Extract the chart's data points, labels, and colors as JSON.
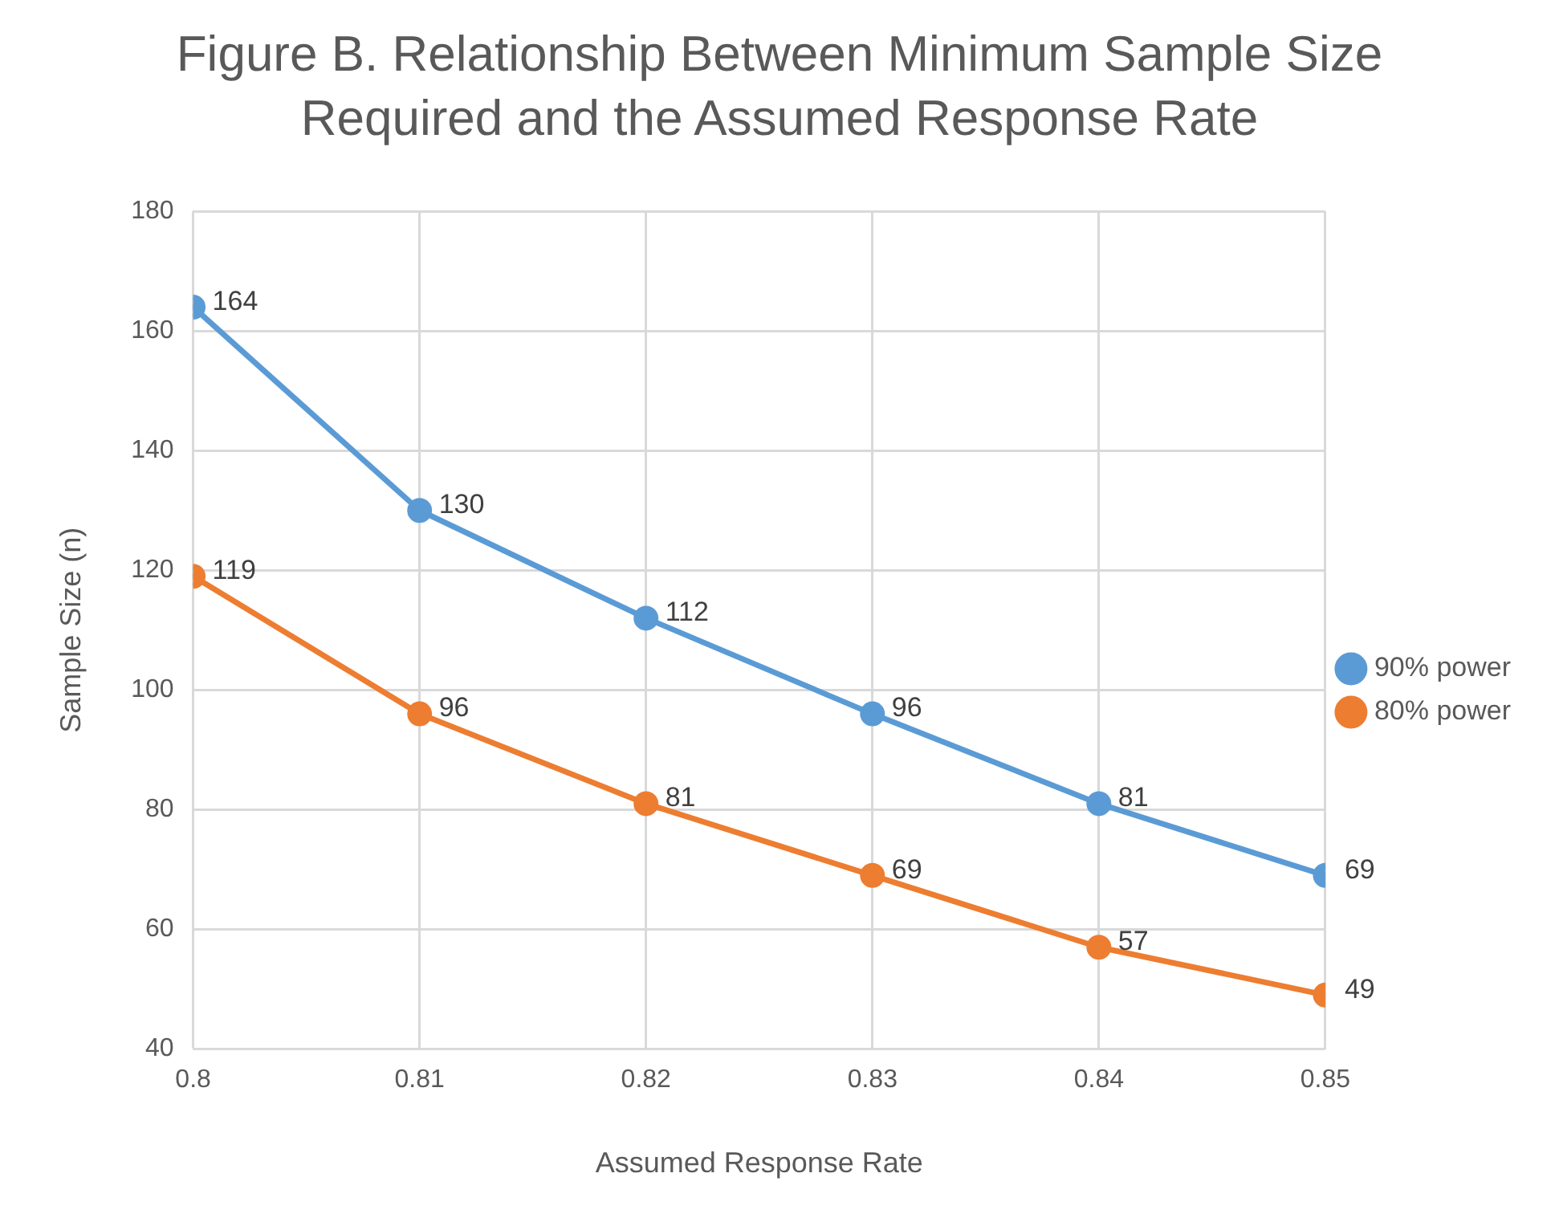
{
  "chart_data": {
    "type": "line",
    "title": "Figure B. Relationship Between Minimum Sample Size Required and the Assumed Response Rate",
    "xlabel": "Assumed Response Rate",
    "ylabel": "Sample Size (n)",
    "x": [
      0.8,
      0.81,
      0.82,
      0.83,
      0.84,
      0.85
    ],
    "series": [
      {
        "name": "90% power",
        "color": "#5b9bd5",
        "values": [
          164,
          130,
          112,
          96,
          81,
          69
        ]
      },
      {
        "name": "80% power",
        "color": "#ed7d31",
        "values": [
          119,
          96,
          81,
          69,
          57,
          49
        ]
      }
    ],
    "xlim": [
      0.8,
      0.85
    ],
    "xticks": [
      0.8,
      0.81,
      0.82,
      0.83,
      0.84,
      0.85
    ],
    "ylim": [
      40,
      180
    ],
    "yticks": [
      40,
      60,
      80,
      100,
      120,
      140,
      160,
      180
    ],
    "grid": true,
    "legend": "right",
    "marker": "circle",
    "line_style": "solid",
    "data_labels": true
  }
}
